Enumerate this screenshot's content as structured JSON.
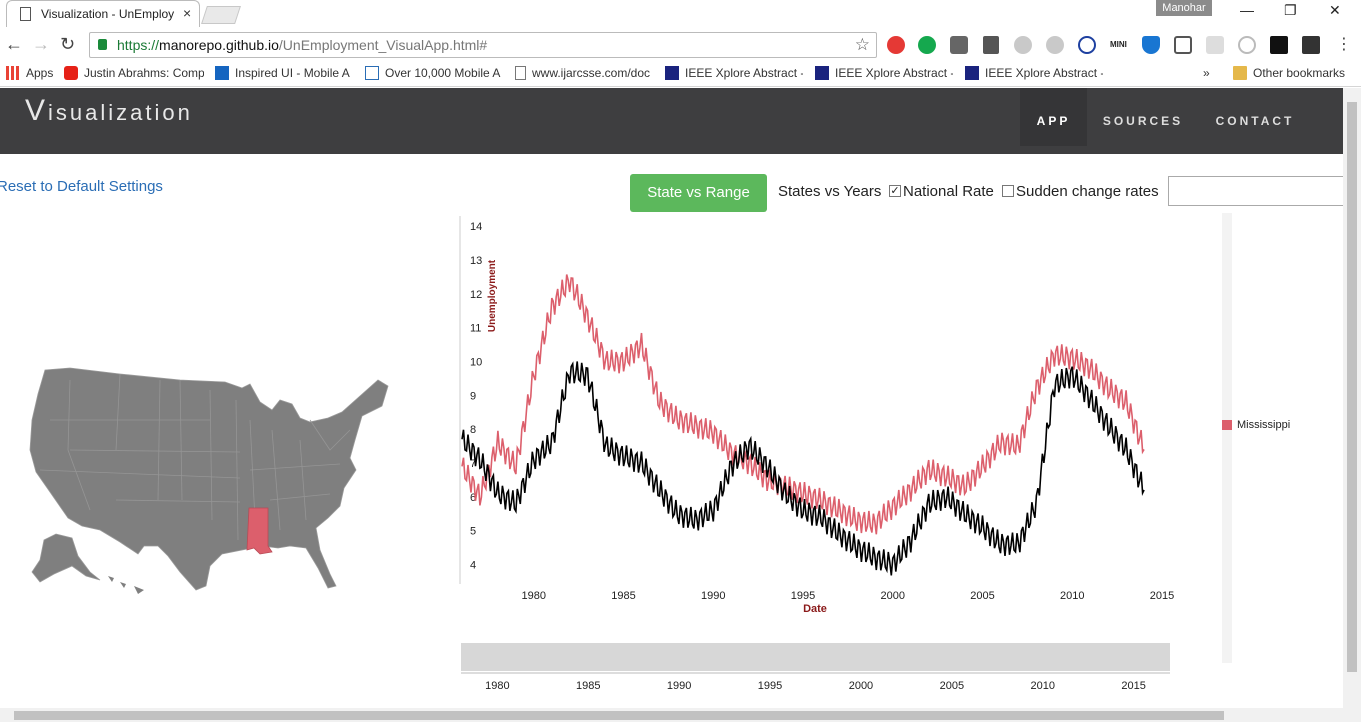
{
  "browser": {
    "tab_title": "Visualization - UnEmploy",
    "tab_close": "×",
    "profile_name": "Manohar",
    "url_scheme": "https://",
    "url_host": "manorepo.github.io",
    "url_path": "/UnEmployment_VisualApp.html#",
    "bookmarks": [
      {
        "label": "Apps",
        "icon": "apps-grid-icon"
      },
      {
        "label": "Justin Abrahms: Comp",
        "icon": "youtube-icon"
      },
      {
        "label": "Inspired UI - Mobile A",
        "icon": "ui-icon"
      },
      {
        "label": "Over 10,000 Mobile A",
        "icon": "page-icon"
      },
      {
        "label": "www.ijarcsse.com/doc",
        "icon": "doc-icon"
      },
      {
        "label": "IEEE Xplore Abstract -",
        "icon": "ieee-icon"
      },
      {
        "label": "IEEE Xplore Abstract -",
        "icon": "ieee-icon"
      },
      {
        "label": "IEEE Xplore Abstract -",
        "icon": "ieee-icon"
      }
    ],
    "bookmarks_more": "»",
    "other_bookmarks": "Other bookmarks"
  },
  "navbar": {
    "brand_initial": "V",
    "brand_rest": "isualization",
    "links": [
      "APP",
      "SOURCES",
      "CONTACT"
    ]
  },
  "controls": {
    "reset_label": "Reset to Default Settings",
    "state_range_button": "State vs Range",
    "states_years_label": "States vs Years",
    "national_rate_label": "National Rate",
    "national_rate_checked": true,
    "sudden_change_label": "Sudden change rates",
    "sudden_change_checked": false,
    "search_value": ""
  },
  "map": {
    "highlighted_state": "Mississippi",
    "base_color": "#7f7f7f",
    "highlight_color": "#dc5f6c"
  },
  "chart_data": {
    "type": "line",
    "xlabel": "Date",
    "ylabel": "Unemployment",
    "xlim": [
      1976,
      2016
    ],
    "ylim": [
      3.6,
      14.3
    ],
    "x_ticks": [
      1980,
      1985,
      1990,
      1995,
      2000,
      2005,
      2010,
      2015
    ],
    "y_ticks": [
      4,
      5,
      6,
      7,
      8,
      9,
      10,
      11,
      12,
      13,
      14
    ],
    "legend_position": "right",
    "series": [
      {
        "name": "Mississippi",
        "color": "#dc5f6c",
        "x": [
          1976,
          1977,
          1978,
          1979,
          1980,
          1981,
          1982,
          1983,
          1984,
          1985,
          1986,
          1987,
          1988,
          1989,
          1990,
          1991,
          1992,
          1993,
          1994,
          1995,
          1996,
          1997,
          1998,
          1999,
          2000,
          2001,
          2002,
          2003,
          2004,
          2005,
          2006,
          2007,
          2008,
          2009,
          2010,
          2011,
          2012,
          2013,
          2014
        ],
        "values": [
          6.9,
          6.0,
          7.6,
          6.9,
          9.6,
          11.6,
          12.4,
          11.3,
          10.0,
          10.0,
          10.5,
          8.8,
          8.3,
          8.1,
          7.9,
          7.3,
          7.0,
          6.5,
          6.3,
          6.1,
          5.9,
          5.6,
          5.3,
          5.2,
          5.7,
          6.2,
          6.8,
          6.6,
          6.3,
          6.9,
          7.6,
          7.5,
          9.2,
          10.2,
          10.1,
          9.8,
          9.2,
          8.8,
          7.4
        ]
      },
      {
        "name": "National Rate",
        "color": "#000000",
        "x": [
          1976,
          1977,
          1978,
          1979,
          1980,
          1981,
          1982,
          1983,
          1984,
          1985,
          1986,
          1987,
          1988,
          1989,
          1990,
          1991,
          1992,
          1993,
          1994,
          1995,
          1996,
          1997,
          1998,
          1999,
          2000,
          2001,
          2002,
          2003,
          2004,
          2005,
          2006,
          2007,
          2008,
          2009,
          2010,
          2011,
          2012,
          2013,
          2014
        ],
        "values": [
          7.7,
          7.1,
          6.1,
          5.8,
          7.1,
          7.6,
          9.7,
          9.6,
          7.5,
          7.2,
          7.0,
          6.2,
          5.5,
          5.3,
          5.6,
          6.9,
          7.5,
          6.9,
          6.1,
          5.6,
          5.4,
          4.9,
          4.5,
          4.2,
          4.0,
          4.7,
          5.8,
          6.0,
          5.5,
          5.1,
          4.6,
          4.6,
          5.8,
          9.3,
          9.6,
          8.9,
          8.1,
          7.4,
          6.2
        ]
      }
    ],
    "brush_ticks": [
      1980,
      1985,
      1990,
      1995,
      2000,
      2005,
      2010,
      2015
    ],
    "brush_xlim": [
      1978,
      2017
    ]
  }
}
